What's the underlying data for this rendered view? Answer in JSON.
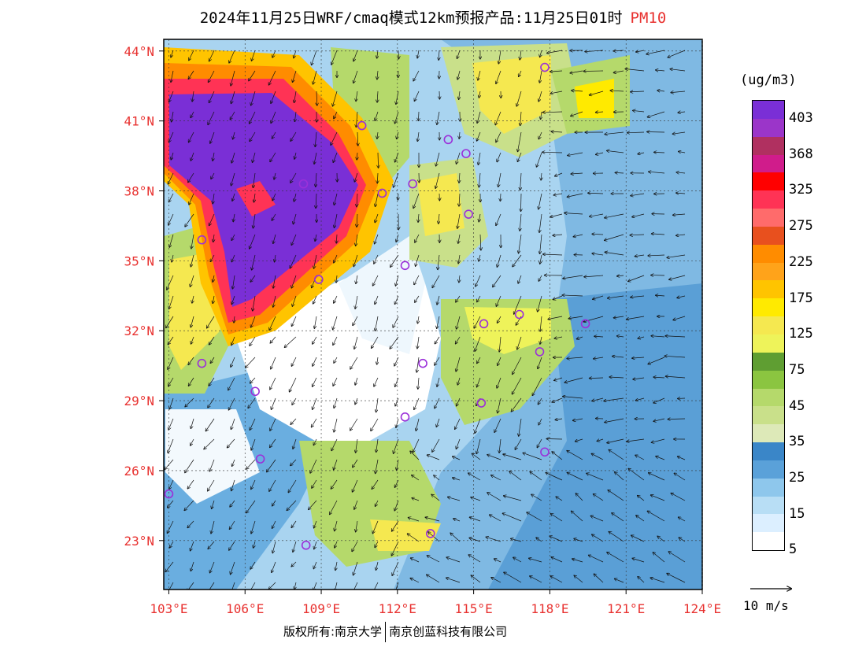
{
  "header": {
    "title": "2024年11月25日WRF/cmaq模式12km预报产品:11月25日01时",
    "pollutant": "PM10"
  },
  "map": {
    "lon_labels": [
      "103°E",
      "106°E",
      "109°E",
      "112°E",
      "115°E",
      "118°E",
      "121°E",
      "124°E"
    ],
    "lat_labels": [
      "44°N",
      "41°N",
      "38°N",
      "35°N",
      "32°N",
      "29°N",
      "26°N",
      "23°N"
    ],
    "label_color": "#e8312f",
    "station_color": "#9b30d9",
    "lon_min": 102.8,
    "lon_max": 124,
    "lat_min": 20.9,
    "lat_max": 44.5,
    "stations": [
      {
        "lon": 117.8,
        "lat": 43.3
      },
      {
        "lon": 110.6,
        "lat": 40.8
      },
      {
        "lon": 114.0,
        "lat": 40.2
      },
      {
        "lon": 114.7,
        "lat": 39.6
      },
      {
        "lon": 112.6,
        "lat": 38.3
      },
      {
        "lon": 111.4,
        "lat": 37.9
      },
      {
        "lon": 108.3,
        "lat": 38.3
      },
      {
        "lon": 114.8,
        "lat": 37.0
      },
      {
        "lon": 104.3,
        "lat": 35.9
      },
      {
        "lon": 112.3,
        "lat": 34.8
      },
      {
        "lon": 108.9,
        "lat": 34.2
      },
      {
        "lon": 115.4,
        "lat": 32.3
      },
      {
        "lon": 116.8,
        "lat": 32.7
      },
      {
        "lon": 119.4,
        "lat": 32.3
      },
      {
        "lon": 104.3,
        "lat": 30.6
      },
      {
        "lon": 117.6,
        "lat": 31.1
      },
      {
        "lon": 113.0,
        "lat": 30.6
      },
      {
        "lon": 106.4,
        "lat": 29.4
      },
      {
        "lon": 115.3,
        "lat": 28.9
      },
      {
        "lon": 112.3,
        "lat": 28.3
      },
      {
        "lon": 106.6,
        "lat": 26.5
      },
      {
        "lon": 117.8,
        "lat": 26.8
      },
      {
        "lon": 103.0,
        "lat": 25.0
      },
      {
        "lon": 108.4,
        "lat": 22.8
      },
      {
        "lon": 113.3,
        "lat": 23.3
      }
    ]
  },
  "legend": {
    "unit": "(ug/m3)",
    "colors": [
      "#7a2fd6",
      "#9b35c9",
      "#b03060",
      "#d01c8b",
      "#ff0000",
      "#ff3355",
      "#ff6b6b",
      "#e8501e",
      "#ff8c00",
      "#ffa31a",
      "#ffc400",
      "#ffea00",
      "#f5e850",
      "#eef35a",
      "#5f9e32",
      "#8bc540",
      "#b5d96b",
      "#c9e08a",
      "#dde9b8",
      "#3a86c8",
      "#5aa1d9",
      "#8ec7ec",
      "#b8def5",
      "#dcefff",
      "#ffffff"
    ],
    "labels": [
      "403",
      "368",
      "325",
      "275",
      "225",
      "175",
      "125",
      "75",
      "45",
      "35",
      "25",
      "15",
      "5"
    ],
    "wind_ref": "10 m/s"
  },
  "footer": {
    "copyright": "版权所有:南京大学",
    "company": "南京创蓝科技有限公司"
  }
}
